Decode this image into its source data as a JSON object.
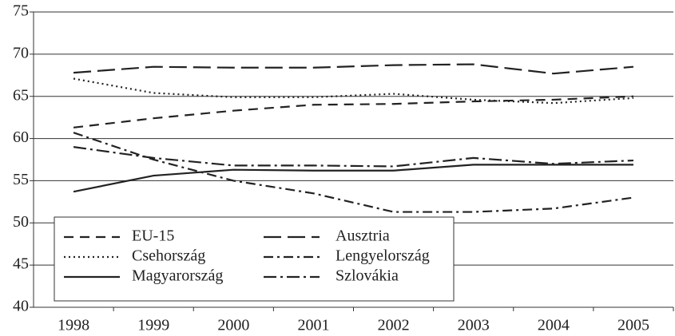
{
  "chart_data": {
    "type": "line",
    "categories": [
      "1998",
      "1999",
      "2000",
      "2001",
      "2002",
      "2003",
      "2004",
      "2005"
    ],
    "series": [
      {
        "name": "EU-15",
        "color": "#222",
        "dash": "12 8",
        "values": [
          61.3,
          62.4,
          63.3,
          64.0,
          64.1,
          64.4,
          64.6,
          65.0
        ]
      },
      {
        "name": "Ausztria",
        "color": "#222",
        "dash": "22 8",
        "values": [
          67.8,
          68.5,
          68.4,
          68.4,
          68.7,
          68.8,
          67.7,
          68.5
        ]
      },
      {
        "name": "Csehország",
        "color": "#222",
        "dash": "2 4",
        "values": [
          67.1,
          65.4,
          64.9,
          64.9,
          65.3,
          64.6,
          64.2,
          64.8
        ]
      },
      {
        "name": "Lengyelország",
        "color": "#222",
        "dash": "12 5 3 5",
        "values": [
          60.7,
          57.5,
          55.0,
          53.5,
          51.3,
          51.3,
          51.7,
          53.0
        ]
      },
      {
        "name": "Magyarország",
        "color": "#222",
        "dash": "none",
        "values": [
          53.7,
          55.6,
          56.3,
          56.2,
          56.2,
          56.9,
          56.9,
          56.9
        ]
      },
      {
        "name": "Szlovákia",
        "color": "#222",
        "dash": "16 5 3 5",
        "values": [
          59.0,
          57.7,
          56.8,
          56.8,
          56.7,
          57.7,
          57.0,
          57.4
        ]
      }
    ],
    "ylim": [
      40,
      75
    ],
    "yticks": [
      40,
      45,
      50,
      55,
      60,
      65,
      70,
      75
    ],
    "grid": true
  }
}
